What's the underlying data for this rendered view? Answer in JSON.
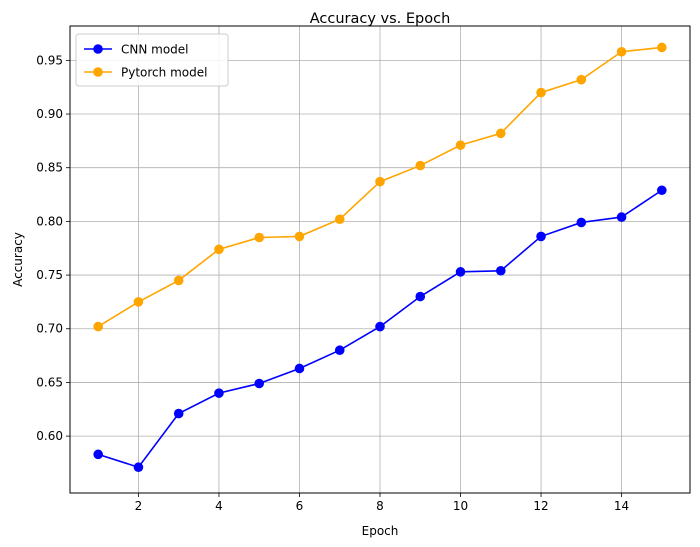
{
  "chart_data": {
    "type": "line",
    "title": "Accuracy vs. Epoch",
    "xlabel": "Epoch",
    "ylabel": "Accuracy",
    "xlim": [
      0.3,
      15.7
    ],
    "ylim": [
      0.547,
      0.982
    ],
    "xticks": [
      2,
      4,
      6,
      8,
      10,
      12,
      14
    ],
    "yticks": [
      0.6,
      0.65,
      0.7,
      0.75,
      0.8,
      0.85,
      0.9,
      0.95
    ],
    "xtick_labels": [
      "2",
      "4",
      "6",
      "8",
      "10",
      "12",
      "14"
    ],
    "ytick_labels": [
      "0.60",
      "0.65",
      "0.70",
      "0.75",
      "0.80",
      "0.85",
      "0.90",
      "0.95"
    ],
    "grid": true,
    "legend_position": "top-left",
    "x": [
      1,
      2,
      3,
      4,
      5,
      6,
      7,
      8,
      9,
      10,
      11,
      12,
      13,
      14,
      15
    ],
    "series": [
      {
        "name": "CNN model",
        "color": "#0000ff",
        "marker": "circle",
        "values": [
          0.583,
          0.571,
          0.621,
          0.64,
          0.649,
          0.663,
          0.68,
          0.702,
          0.73,
          0.753,
          0.754,
          0.786,
          0.799,
          0.804,
          0.829
        ]
      },
      {
        "name": "Pytorch model",
        "color": "#ffa500",
        "marker": "circle",
        "values": [
          0.702,
          0.725,
          0.745,
          0.774,
          0.785,
          0.786,
          0.802,
          0.837,
          0.852,
          0.871,
          0.882,
          0.92,
          0.932,
          0.958,
          0.962
        ]
      }
    ]
  }
}
